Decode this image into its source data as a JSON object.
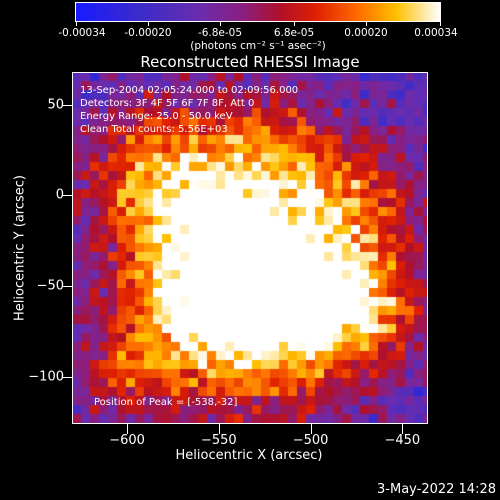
{
  "colorbar": {
    "tick_labels": [
      "-0.00034",
      "-0.00020",
      "-6.8e-05",
      "6.8e-05",
      "0.00020",
      "0.00034"
    ],
    "units": "(photons cm⁻² s⁻¹ asec⁻²)",
    "colors": [
      "#1a1aff",
      "#6a2cae",
      "#b0102a",
      "#ff7000",
      "#ffffff"
    ]
  },
  "title": "Reconstructed RHESSI Image",
  "annotations": {
    "time": "13-Sep-2004 02:05:24.000 to 02:09:56.000",
    "detectors": "Detectors: 3F 4F 5F 6F 7F 8F, Att 0",
    "energy": "Energy Range: 25.0 - 50.0 keV",
    "clean": "Clean     Total counts: 5.56E+03",
    "peak": "Position of Peak = [-538,-32]"
  },
  "footer": "3-May-2022 14:28",
  "chart_data": {
    "type": "heatmap",
    "title": "Reconstructed RHESSI Image",
    "xlabel": "Heliocentric X (arcsec)",
    "ylabel": "Heliocentric Y (arcsec)",
    "xlim": [
      -630,
      -436
    ],
    "ylim": [
      -126,
      68
    ],
    "x_ticks": [
      -600,
      -550,
      -500,
      -450
    ],
    "y_ticks": [
      50,
      0,
      -50,
      -100
    ],
    "x_tick_labels": [
      "−600",
      "−550",
      "−500",
      "−450"
    ],
    "y_tick_labels": [
      "50",
      "0",
      "−50",
      "−100"
    ],
    "peak_position": [
      -538,
      -32
    ],
    "color_range": [
      -0.00034,
      0.00034
    ]
  }
}
